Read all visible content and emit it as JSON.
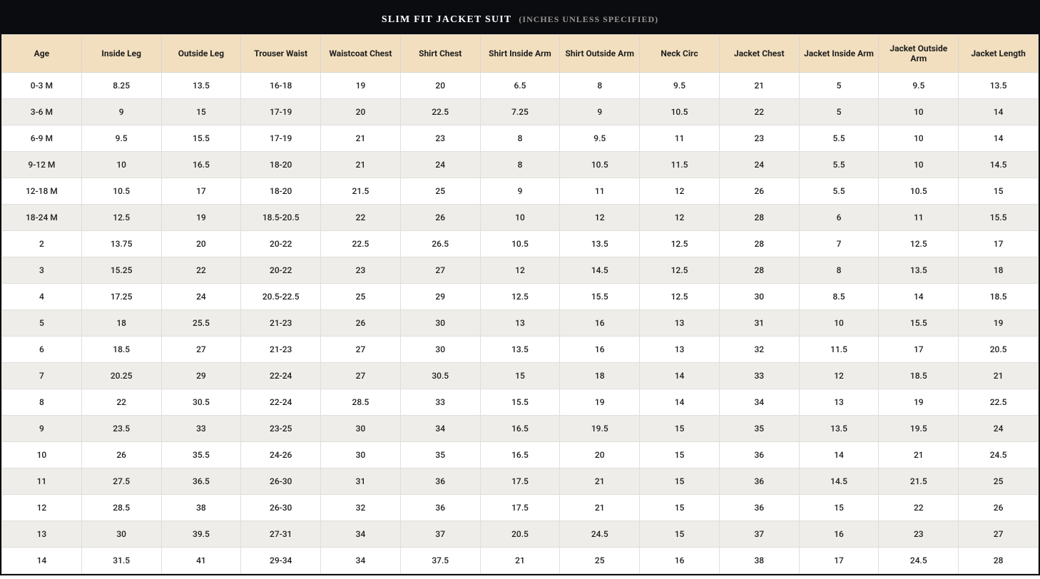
{
  "title": {
    "main": "SLIM FIT JACKET SUIT",
    "sub": "(INCHES UNLESS SPECIFIED)"
  },
  "table": {
    "type": "table",
    "header_bg": "#f2dfbf",
    "row_alt_bg": "#efedea",
    "row_bg": "#ffffff",
    "border_color": "#e0dedb",
    "title_bg": "#0a0c10",
    "title_color": "#ffffff",
    "title_sub_color": "#9a968f",
    "font_size_header": 12,
    "font_size_cell": 12,
    "columns": [
      "Age",
      "Inside Leg",
      "Outside Leg",
      "Trouser Waist",
      "Waistcoat Chest",
      "Shirt Chest",
      "Shirt Inside Arm",
      "Shirt Outside Arm",
      "Neck Circ",
      "Jacket Chest",
      "Jacket Inside Arm",
      "Jacket Outside Arm",
      "Jacket Length"
    ],
    "rows": [
      [
        "0-3 M",
        "8.25",
        "13.5",
        "16-18",
        "19",
        "20",
        "6.5",
        "8",
        "9.5",
        "21",
        "5",
        "9.5",
        "13.5"
      ],
      [
        "3-6 M",
        "9",
        "15",
        "17-19",
        "20",
        "22.5",
        "7.25",
        "9",
        "10.5",
        "22",
        "5",
        "10",
        "14"
      ],
      [
        "6-9 M",
        "9.5",
        "15.5",
        "17-19",
        "21",
        "23",
        "8",
        "9.5",
        "11",
        "23",
        "5.5",
        "10",
        "14"
      ],
      [
        "9-12 M",
        "10",
        "16.5",
        "18-20",
        "21",
        "24",
        "8",
        "10.5",
        "11.5",
        "24",
        "5.5",
        "10",
        "14.5"
      ],
      [
        "12-18 M",
        "10.5",
        "17",
        "18-20",
        "21.5",
        "25",
        "9",
        "11",
        "12",
        "26",
        "5.5",
        "10.5",
        "15"
      ],
      [
        "18-24 M",
        "12.5",
        "19",
        "18.5-20.5",
        "22",
        "26",
        "10",
        "12",
        "12",
        "28",
        "6",
        "11",
        "15.5"
      ],
      [
        "2",
        "13.75",
        "20",
        "20-22",
        "22.5",
        "26.5",
        "10.5",
        "13.5",
        "12.5",
        "28",
        "7",
        "12.5",
        "17"
      ],
      [
        "3",
        "15.25",
        "22",
        "20-22",
        "23",
        "27",
        "12",
        "14.5",
        "12.5",
        "28",
        "8",
        "13.5",
        "18"
      ],
      [
        "4",
        "17.25",
        "24",
        "20.5-22.5",
        "25",
        "29",
        "12.5",
        "15.5",
        "12.5",
        "30",
        "8.5",
        "14",
        "18.5"
      ],
      [
        "5",
        "18",
        "25.5",
        "21-23",
        "26",
        "30",
        "13",
        "16",
        "13",
        "31",
        "10",
        "15.5",
        "19"
      ],
      [
        "6",
        "18.5",
        "27",
        "21-23",
        "27",
        "30",
        "13.5",
        "16",
        "13",
        "32",
        "11.5",
        "17",
        "20.5"
      ],
      [
        "7",
        "20.25",
        "29",
        "22-24",
        "27",
        "30.5",
        "15",
        "18",
        "14",
        "33",
        "12",
        "18.5",
        "21"
      ],
      [
        "8",
        "22",
        "30.5",
        "22-24",
        "28.5",
        "33",
        "15.5",
        "19",
        "14",
        "34",
        "13",
        "19",
        "22.5"
      ],
      [
        "9",
        "23.5",
        "33",
        "23-25",
        "30",
        "34",
        "16.5",
        "19.5",
        "15",
        "35",
        "13.5",
        "19.5",
        "24"
      ],
      [
        "10",
        "26",
        "35.5",
        "24-26",
        "30",
        "35",
        "16.5",
        "20",
        "15",
        "36",
        "14",
        "21",
        "24.5"
      ],
      [
        "11",
        "27.5",
        "36.5",
        "26-30",
        "31",
        "36",
        "17.5",
        "21",
        "15",
        "36",
        "14.5",
        "21.5",
        "25"
      ],
      [
        "12",
        "28.5",
        "38",
        "26-30",
        "32",
        "36",
        "17.5",
        "21",
        "15",
        "36",
        "15",
        "22",
        "26"
      ],
      [
        "13",
        "30",
        "39.5",
        "27-31",
        "34",
        "37",
        "20.5",
        "24.5",
        "15",
        "37",
        "16",
        "23",
        "27"
      ],
      [
        "14",
        "31.5",
        "41",
        "29-34",
        "34",
        "37.5",
        "21",
        "25",
        "16",
        "38",
        "17",
        "24.5",
        "28"
      ]
    ]
  }
}
